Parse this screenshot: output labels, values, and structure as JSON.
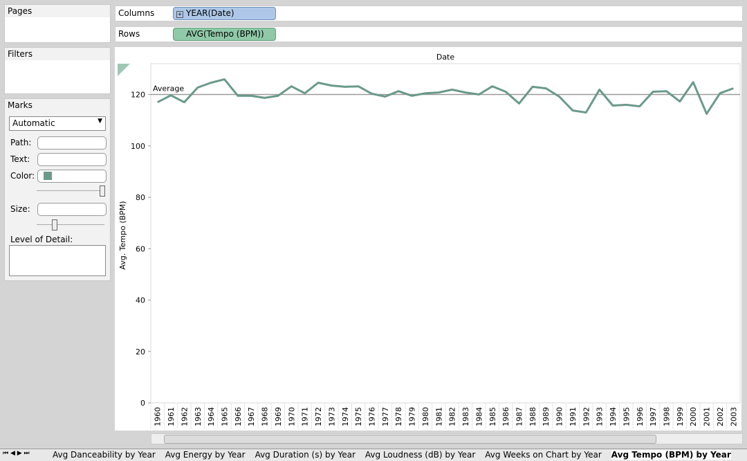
{
  "sidebar": {
    "pages": "Pages",
    "filters": "Filters",
    "marks": "Marks",
    "mark_type": "Automatic",
    "fields": [
      "Path:",
      "Text:",
      "Color:",
      "Size:"
    ],
    "detail": "Level of Detail:"
  },
  "shelves": {
    "columns_label": "Columns",
    "columns_pill": "YEAR(Date)",
    "rows_label": "Rows",
    "rows_pill": "AVG(Tempo (BPM))"
  },
  "tabs": [
    "Avg Danceability by Year",
    "Avg Energy by Year",
    "Avg Duration (s) by Year",
    "Avg Loudness (dB) by Year",
    "Avg Weeks on Chart by Year",
    "Avg Tempo (BPM) by Year"
  ],
  "chart_data": {
    "type": "line",
    "x_label": "Date",
    "y_label": "Avg. Tempo (BPM)",
    "color": "#6a9a88",
    "categories": [
      "1960",
      "1961",
      "1962",
      "1963",
      "1964",
      "1965",
      "1966",
      "1967",
      "1968",
      "1969",
      "1970",
      "1971",
      "1972",
      "1973",
      "1974",
      "1975",
      "1976",
      "1977",
      "1978",
      "1979",
      "1980",
      "1981",
      "1982",
      "1983",
      "1984",
      "1985",
      "1986",
      "1987",
      "1988",
      "1989",
      "1990",
      "1991",
      "1992",
      "1993",
      "1994",
      "1995",
      "1996",
      "1997",
      "1998",
      "1999",
      "2000",
      "2001",
      "2002",
      "2003"
    ],
    "values": [
      117,
      119.7,
      117,
      122.7,
      124.6,
      125.9,
      119.5,
      119.5,
      118.7,
      119.5,
      123.2,
      120.5,
      124.6,
      123.5,
      123,
      123.2,
      120.3,
      119.2,
      121.3,
      119.5,
      120.5,
      120.8,
      121.9,
      120.8,
      120,
      123.2,
      121.1,
      116.5,
      123,
      122.4,
      119.2,
      113.8,
      113,
      121.9,
      115.7,
      116,
      115.4,
      121.1,
      121.3,
      117.3,
      124.8,
      112.5,
      120.5,
      122.4
    ],
    "reference_line": {
      "label": "Average",
      "value": 120
    },
    "ylim": [
      0,
      132
    ],
    "yticks": [
      0,
      20,
      40,
      60,
      80,
      100,
      120
    ]
  }
}
